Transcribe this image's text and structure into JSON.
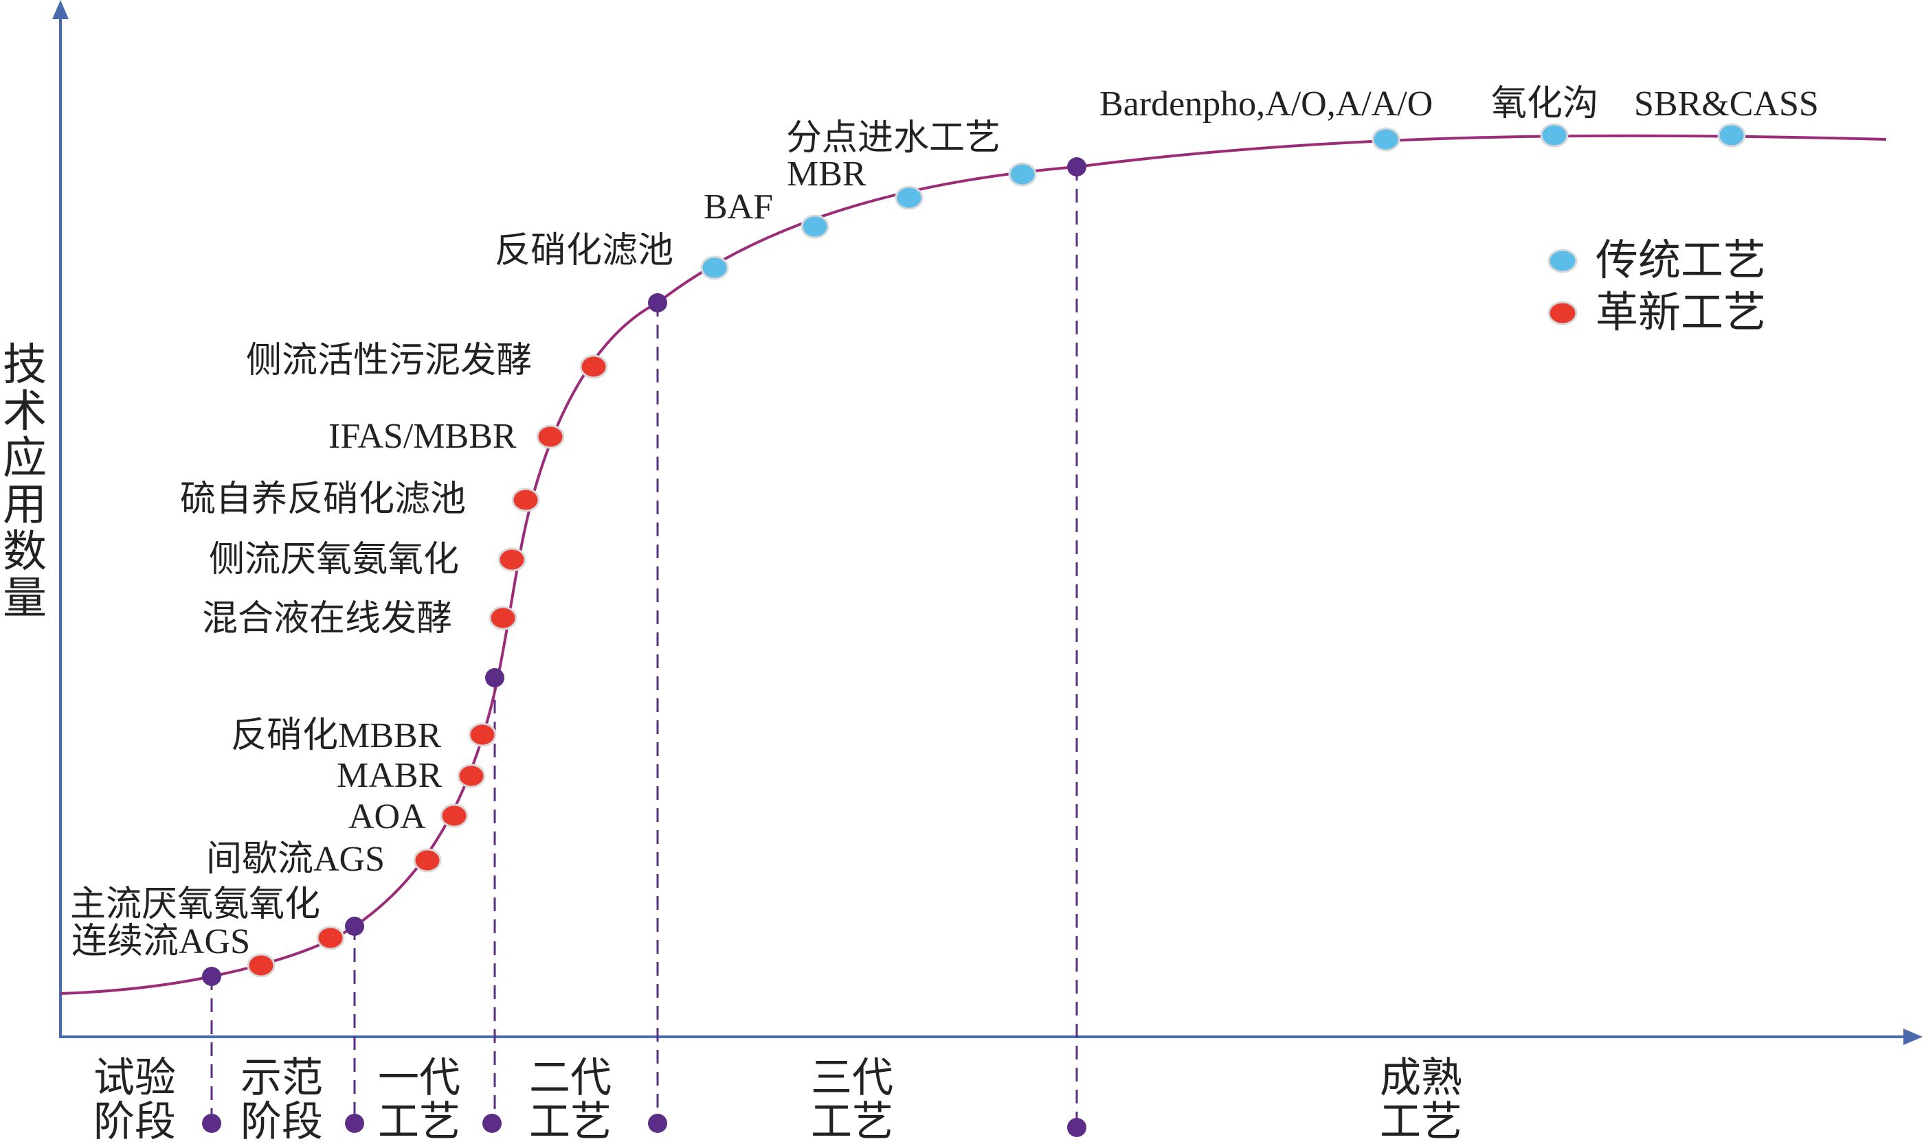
{
  "y_axis_label": [
    "技",
    "术",
    "应",
    "用",
    "数",
    "量"
  ],
  "colors": {
    "curve": "#9a2c78",
    "axis": "#4a6aae",
    "traditional": "#5cbde8",
    "innovative": "#e8392c",
    "milestone": "#5c2d86",
    "label": "#222222"
  },
  "legend": {
    "traditional": "传统工艺",
    "innovative": "革新工艺"
  },
  "points": [
    {
      "id": "continuous-ags",
      "label": "连续流AGS",
      "type": "innovative"
    },
    {
      "id": "mainstream-anammox",
      "label": "主流厌氧氨氧化",
      "type": "innovative"
    },
    {
      "id": "intermittent-ags",
      "label": "间歇流AGS",
      "type": "innovative"
    },
    {
      "id": "aoa",
      "label": "AOA",
      "type": "innovative"
    },
    {
      "id": "mabr",
      "label": "MABR",
      "type": "innovative"
    },
    {
      "id": "denitrification-mbbr",
      "label": "反硝化MBBR",
      "type": "innovative"
    },
    {
      "id": "mixed-liquor-fermentation",
      "label": "混合液在线发酵",
      "type": "innovative"
    },
    {
      "id": "sidestream-anammox",
      "label": "侧流厌氧氨氧化",
      "type": "innovative"
    },
    {
      "id": "sulfur-denitrification-filter",
      "label": "硫自养反硝化滤池",
      "type": "innovative"
    },
    {
      "id": "ifas-mbbr",
      "label": "IFAS/MBBR",
      "type": "innovative"
    },
    {
      "id": "sidestream-sludge-fermentation",
      "label": "侧流活性污泥发酵",
      "type": "innovative"
    },
    {
      "id": "denitrification-filter",
      "label": "反硝化滤池",
      "type": "traditional"
    },
    {
      "id": "baf",
      "label": "BAF",
      "type": "traditional"
    },
    {
      "id": "mbr",
      "label": "MBR",
      "type": "traditional"
    },
    {
      "id": "step-feed",
      "label": "分点进水工艺",
      "type": "traditional"
    },
    {
      "id": "bardenpho",
      "label": "Bardenpho,A/O,A/A/O",
      "type": "traditional"
    },
    {
      "id": "oxidation-ditch",
      "label": "氧化沟",
      "type": "traditional"
    },
    {
      "id": "sbr-cass",
      "label": "SBR&CASS",
      "type": "traditional"
    }
  ],
  "stages": [
    {
      "id": "trial",
      "lines": [
        "试验",
        "阶段"
      ]
    },
    {
      "id": "demo",
      "lines": [
        "示范",
        "阶段"
      ]
    },
    {
      "id": "gen1",
      "lines": [
        "一代",
        "工艺"
      ]
    },
    {
      "id": "gen2",
      "lines": [
        "二代",
        "工艺"
      ]
    },
    {
      "id": "gen3",
      "lines": [
        "三代",
        "工艺"
      ]
    },
    {
      "id": "mature",
      "lines": [
        "成熟",
        "工艺"
      ]
    }
  ]
}
